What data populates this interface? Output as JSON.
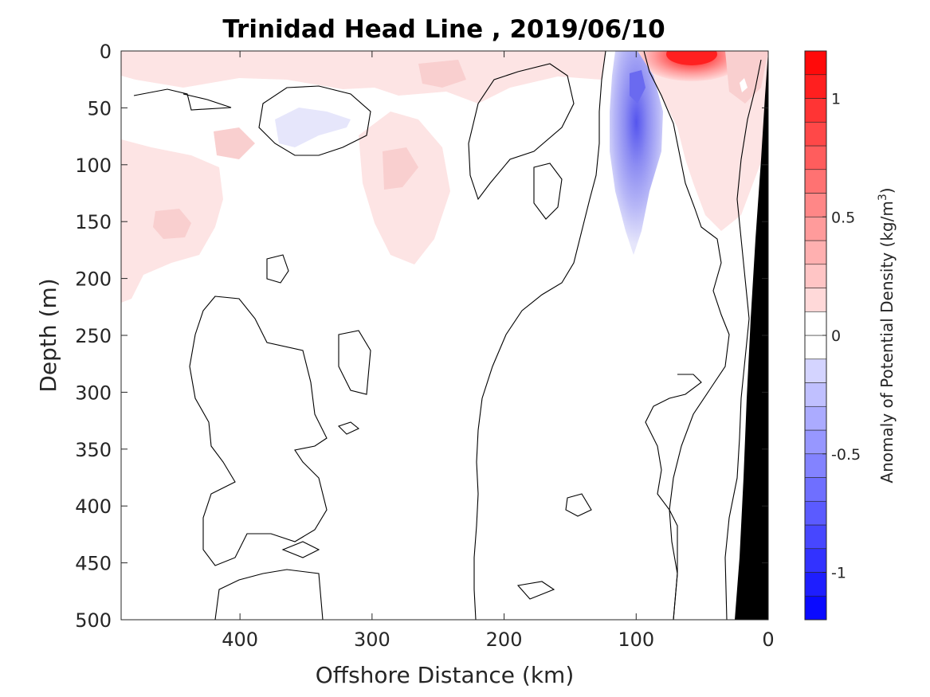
{
  "chart_data": {
    "type": "contour",
    "title": "Trinidad Head Line , 2019/06/10",
    "xlabel": "Offshore Distance (km)",
    "ylabel": "Depth (m)",
    "xlim": [
      490,
      0
    ],
    "ylim": [
      0,
      500
    ],
    "x_reversed": true,
    "y_reversed": true,
    "x_ticks": [
      "400",
      "300",
      "200",
      "100",
      "0"
    ],
    "x_tick_values": [
      400,
      300,
      200,
      100,
      0
    ],
    "y_ticks": [
      "0",
      "50",
      "100",
      "150",
      "200",
      "250",
      "300",
      "350",
      "400",
      "450",
      "500"
    ],
    "y_tick_values": [
      0,
      50,
      100,
      150,
      200,
      250,
      300,
      350,
      400,
      450,
      500
    ],
    "colorbar": {
      "label_prefix": "Anomaly of Potential Density (kg/m",
      "label_sup": "3",
      "label_suffix": ")",
      "range": [
        -1.2,
        1.2
      ],
      "ticks": [
        "1",
        "0.5",
        "0",
        "-0.5",
        "-1"
      ],
      "tick_values": [
        1,
        0.5,
        0,
        -0.5,
        -1
      ],
      "level_step": 0.1
    },
    "colors": {
      "positive_max": "#ff0000",
      "negative_max": "#0000ff",
      "zero": "#ffffff",
      "bathymetry": "#000000",
      "contour": "#000000"
    },
    "features": [
      {
        "name": "surface positive anomaly near coast",
        "x_range": [
          85,
          30
        ],
        "depth_range": [
          0,
          20
        ],
        "peak_value": 1.2
      },
      {
        "name": "negative anomaly core",
        "x_center": 100,
        "depth_center": 30,
        "peak_value": -0.6
      },
      {
        "name": "offshore subsurface positive anomaly",
        "x_center": 460,
        "depth_center": 150,
        "peak_value": 0.3
      },
      {
        "name": "bathymetry",
        "shelf_depth_at_x0": 0,
        "depth_at_x25": 500
      }
    ]
  }
}
